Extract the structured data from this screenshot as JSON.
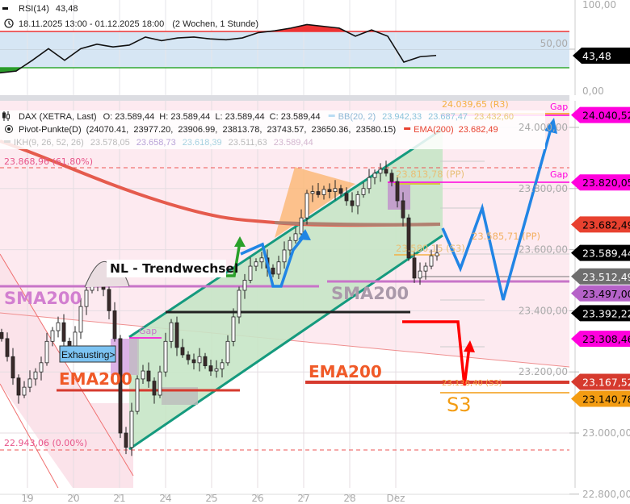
{
  "rsi_header": {
    "name": "RSI(14)",
    "value": "43,48"
  },
  "range_header": {
    "range": "18.11.2025 13:00 - 01.12.2025 18:00",
    "span": "(2 Wochen, 1 Stunde)"
  },
  "legend": {
    "symbol": "DAX (XETRA, Last)",
    "ohlc": "O: 23.589,44  H: 23.589,44  L: 23.589,44  C: 23.589,44",
    "bb_name": "BB(20, 2)",
    "bb_values": [
      "23.942,33",
      "23.687,47",
      "23.432,60"
    ],
    "pivot_name": "Pivot-Punkte(D)",
    "pivot_values": "(24070.41,  23977.20,  23906.99,  23813.78,  23743.57,  23650.36,  23580.15)",
    "ema_name": "EMA(200)",
    "ema_value": "23.682,49",
    "ikh_name": "IKH(9, 26, 52, 26)",
    "ikh_values": [
      "23.578,05",
      "23.658,73",
      "23.618,39",
      "23.511,63",
      "23.589,44"
    ]
  },
  "annotations": {
    "fib_618": "23.868,96 (61.80%)",
    "fib_0": "22.943,06 (0.00%)",
    "r3": "24.039,65 (R3)",
    "pp1": "23.813,78 (PP)",
    "s3_1": "23.580,15 (S3)",
    "pp2": "23.585,71 (PP)",
    "s3_2": "23.136,40 (S3)",
    "s3_big": "S3",
    "nl": "NL - Trendwechsel",
    "sma_left": "SMA200",
    "sma_right": "SMA200",
    "ema_left": "EMA200",
    "ema_right": "EMA200",
    "exhausting": "Exhausting>",
    "gap_small": "Gap",
    "gap_top": "Gap",
    "gap_mid": "Gap"
  },
  "price_labels": [
    {
      "text": "24.040,52",
      "price": 24040.52,
      "bg": "#ff00dd",
      "fg": "#000000"
    },
    {
      "text": "23.820,05",
      "price": 23820.05,
      "bg": "#ff00dd",
      "fg": "#000000"
    },
    {
      "text": "23.682,49",
      "price": 23682.49,
      "bg": "#e8412f",
      "fg": "#000000"
    },
    {
      "text": "23.589,44",
      "price": 23589.44,
      "bg": "#000000",
      "fg": "#ffffff"
    },
    {
      "text": "23.497,00",
      "price": 23497.0,
      "bg": "#b562c8",
      "fg": "#000000"
    },
    {
      "text": "23.512,49",
      "price": 23512.49,
      "bg": "#6e6e6e",
      "fg": "#ffffff"
    },
    {
      "text": "23.392,22",
      "price": 23392.22,
      "bg": "#000000",
      "fg": "#ffffff"
    },
    {
      "text": "23.308,46",
      "price": 23308.46,
      "bg": "#ff00dd",
      "fg": "#000000"
    },
    {
      "text": "23.140,78",
      "price": 23140.78,
      "bg": "#f39c12",
      "fg": "#000000"
    },
    {
      "text": "23.167,52",
      "price": 23167.52,
      "bg": "#d63a2e",
      "fg": "#ffffff"
    }
  ],
  "rsi_axis": {
    "ticks": [
      "100,00",
      "50,00",
      "0,00"
    ],
    "label": "43,48"
  },
  "chart_data": {
    "type": "candlestick",
    "title": "DAX (XETRA, Last)",
    "y_ticks": [
      "24.000,00",
      "23.800,00",
      "23.600,00",
      "23.400,00",
      "23.200,00",
      "23.000,00",
      "22.800,00"
    ],
    "ylim": [
      22780,
      24130
    ],
    "x_ticks": [
      "19",
      "20",
      "21",
      "24",
      "25",
      "26",
      "27",
      "28",
      "Dez"
    ],
    "close": [
      23309,
      23250,
      23180,
      23124,
      23150,
      23177,
      23200,
      23230,
      23300,
      23335,
      23361,
      23300,
      23256,
      23330,
      23414,
      23467,
      23480,
      23493,
      23470,
      23400,
      23309,
      23000,
      22953,
      23071,
      23177,
      23203,
      23170,
      23124,
      23200,
      23300,
      23361,
      23280,
      23256,
      23240,
      23230,
      23250,
      23220,
      23203,
      23210,
      23230,
      23300,
      23380,
      23467,
      23500,
      23546,
      23560,
      23573,
      23540,
      23520,
      23560,
      23599,
      23630,
      23652,
      23704,
      23784,
      23790,
      23780,
      23797,
      23790,
      23800,
      23784,
      23760,
      23744,
      23780,
      23800,
      23836,
      23850,
      23863,
      23850,
      23823,
      23760,
      23704,
      23573,
      23507,
      23530,
      23546,
      23580,
      23589
    ],
    "rsi": {
      "ylim": [
        0,
        100
      ],
      "upper": 70,
      "lower": 30,
      "values": [
        24,
        26,
        38,
        51,
        38,
        51,
        56,
        53,
        55,
        64,
        60,
        63,
        64,
        62,
        61,
        63,
        69,
        71,
        74,
        78,
        76,
        74,
        65,
        72,
        65,
        36,
        42,
        43.48
      ]
    },
    "grid": true,
    "colors": {
      "up": "#ffffff",
      "down": "#3a2a2a",
      "ema": "#e55b4d",
      "sma": "#c874c8",
      "channel": "#159a7e",
      "forecast": "#2185e5"
    }
  }
}
